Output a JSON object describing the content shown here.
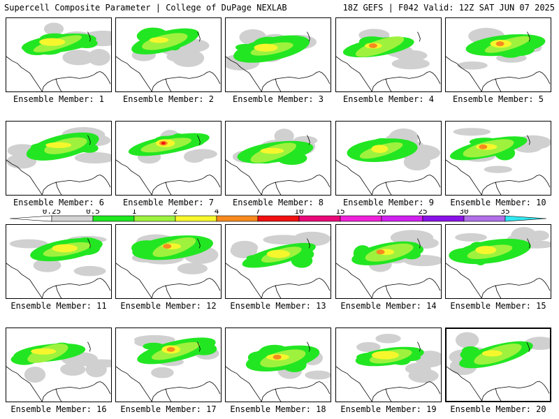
{
  "header": {
    "left_title": "Supercell Composite Parameter | College of DuPage NEXLAB",
    "right_title": "18Z GEFS | F042 Valid: 12Z SAT JUN 07 2025"
  },
  "colorbar": {
    "levels": [
      {
        "label": "0.25",
        "color": "#d3d3d3"
      },
      {
        "label": "0.5",
        "color": "#1fe81f"
      },
      {
        "label": "1",
        "color": "#9ef23d"
      },
      {
        "label": "2",
        "color": "#f6f62d"
      },
      {
        "label": "4",
        "color": "#f68a1f"
      },
      {
        "label": "7",
        "color": "#f01010"
      },
      {
        "label": "10",
        "color": "#e80878"
      },
      {
        "label": "15",
        "color": "#f020d8"
      },
      {
        "label": "20",
        "color": "#d020f0"
      },
      {
        "label": "25",
        "color": "#8a12e8"
      },
      {
        "label": "30",
        "color": "#b070e8"
      },
      {
        "label": "35",
        "color": "#30e8f0"
      }
    ]
  },
  "members": [
    {
      "label": "Ensemble Member: 1",
      "max": "yellow"
    },
    {
      "label": "Ensemble Member: 2",
      "max": "yellow"
    },
    {
      "label": "Ensemble Member: 3",
      "max": "yellow"
    },
    {
      "label": "Ensemble Member: 4",
      "max": "orange"
    },
    {
      "label": "Ensemble Member: 5",
      "max": "orange"
    },
    {
      "label": "Ensemble Member: 6",
      "max": "yellow"
    },
    {
      "label": "Ensemble Member: 7",
      "max": "red"
    },
    {
      "label": "Ensemble Member: 8",
      "max": "yellow"
    },
    {
      "label": "Ensemble Member: 9",
      "max": "yellow"
    },
    {
      "label": "Ensemble Member: 10",
      "max": "orange"
    },
    {
      "label": "Ensemble Member: 11",
      "max": "yellow"
    },
    {
      "label": "Ensemble Member: 12",
      "max": "orange"
    },
    {
      "label": "Ensemble Member: 13",
      "max": "yellow"
    },
    {
      "label": "Ensemble Member: 14",
      "max": "orange"
    },
    {
      "label": "Ensemble Member: 15",
      "max": "yellow"
    },
    {
      "label": "Ensemble Member: 16",
      "max": "yellow"
    },
    {
      "label": "Ensemble Member: 17",
      "max": "orange"
    },
    {
      "label": "Ensemble Member: 18",
      "max": "orange"
    },
    {
      "label": "Ensemble Member: 19",
      "max": "yellow"
    },
    {
      "label": "Ensemble Member: 20",
      "max": "yellow",
      "selected": true
    }
  ]
}
